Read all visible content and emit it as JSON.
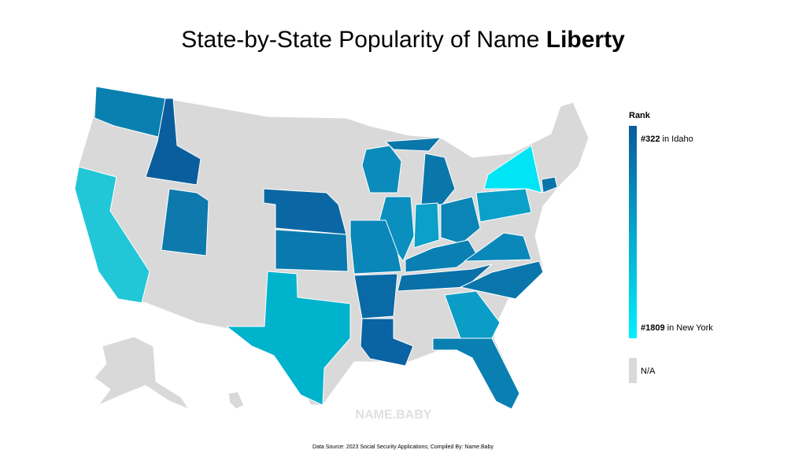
{
  "header": {
    "title": "State-by-State Popularity of Name",
    "name": "Liberty"
  },
  "legend": {
    "title": "Rank",
    "top": {
      "rank": "#322",
      "label": "in Idaho"
    },
    "bottom": {
      "rank": "#1809",
      "label": "in New York"
    },
    "na": "N/A",
    "gradient": [
      "#0a5b9c",
      "#00f0ff"
    ],
    "na_color": "#d9d9d9"
  },
  "watermark": "NAME.BABY",
  "source": "Data Source: 2023 Social Security Applications; Compiled By: Name.Baby"
}
